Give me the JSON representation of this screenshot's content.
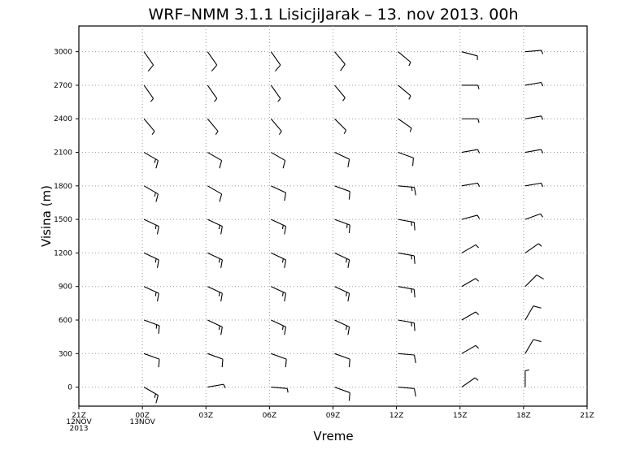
{
  "chart_data": {
    "type": "wind_barb",
    "title": "WRF–NMM 3.1.1 LisicjiJarak – 13. nov 2013. 00h",
    "x_label": "Vreme",
    "y_label": "Visina (m)",
    "xlim": [
      0,
      24
    ],
    "xticks": [
      {
        "value": 0,
        "label": "21Z",
        "date": "12NOV",
        "year": "2013"
      },
      {
        "value": 3,
        "label": "00Z",
        "date": "13NOV"
      },
      {
        "value": 6,
        "label": "03Z"
      },
      {
        "value": 9,
        "label": "06Z"
      },
      {
        "value": 12,
        "label": "09Z"
      },
      {
        "value": 15,
        "label": "12Z"
      },
      {
        "value": 18,
        "label": "15Z"
      },
      {
        "value": 21,
        "label": "18Z"
      },
      {
        "value": 24,
        "label": "21Z"
      }
    ],
    "ylim": [
      -170,
      3230
    ],
    "yticks": [
      0,
      300,
      600,
      900,
      1200,
      1500,
      1800,
      2100,
      2400,
      2700,
      3000
    ],
    "grid": true,
    "color": "#000000",
    "heights": [
      0,
      300,
      600,
      900,
      1200,
      1500,
      1800,
      2100,
      2400,
      2700,
      3000
    ],
    "columns": [
      {
        "x": 3,
        "direction": [
          120,
          110,
          110,
          115,
          115,
          115,
          120,
          120,
          140,
          145,
          145
        ],
        "speed": [
          15,
          10,
          15,
          15,
          15,
          15,
          15,
          15,
          5,
          5,
          10
        ]
      },
      {
        "x": 6,
        "direction": [
          80,
          110,
          115,
          115,
          115,
          115,
          120,
          120,
          140,
          145,
          145
        ],
        "speed": [
          5,
          10,
          15,
          15,
          15,
          15,
          10,
          10,
          5,
          5,
          10
        ]
      },
      {
        "x": 9,
        "direction": [
          95,
          110,
          115,
          115,
          115,
          115,
          115,
          120,
          140,
          145,
          145
        ],
        "speed": [
          5,
          10,
          15,
          15,
          15,
          15,
          10,
          10,
          5,
          5,
          10
        ]
      },
      {
        "x": 12,
        "direction": [
          110,
          110,
          115,
          115,
          115,
          110,
          110,
          115,
          135,
          140,
          140
        ],
        "speed": [
          10,
          10,
          15,
          15,
          15,
          15,
          10,
          10,
          5,
          5,
          10
        ]
      },
      {
        "x": 15,
        "direction": [
          95,
          95,
          100,
          100,
          100,
          100,
          95,
          110,
          125,
          130,
          130
        ],
        "speed": [
          10,
          10,
          15,
          15,
          15,
          15,
          15,
          10,
          5,
          5,
          5
        ]
      },
      {
        "x": 18,
        "direction": [
          55,
          60,
          60,
          60,
          60,
          75,
          80,
          80,
          90,
          90,
          105
        ],
        "speed": [
          5,
          5,
          5,
          5,
          5,
          5,
          5,
          5,
          5,
          5,
          5
        ]
      },
      {
        "x": 21,
        "direction": [
          0,
          30,
          30,
          45,
          55,
          70,
          80,
          80,
          80,
          80,
          85
        ],
        "speed": [
          5,
          10,
          10,
          10,
          5,
          5,
          5,
          5,
          5,
          5,
          5
        ]
      }
    ]
  }
}
